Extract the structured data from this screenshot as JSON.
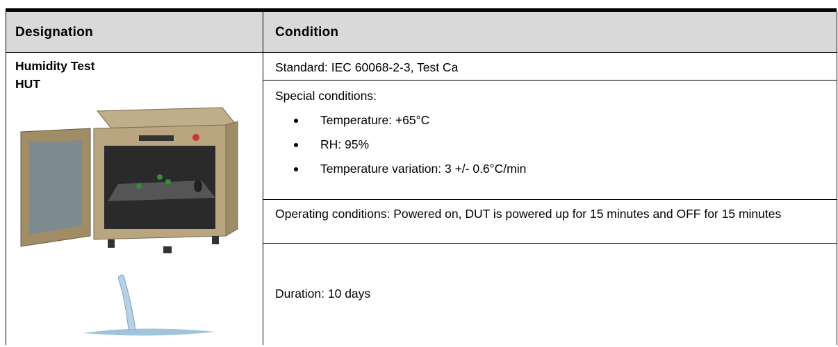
{
  "table": {
    "header": [
      "Designation",
      "Condition"
    ],
    "designation": [
      "Humidity Test",
      "HUT"
    ],
    "conditions": {
      "standard": "Standard: IEC 60068-2-3, Test Ca",
      "special_title": "Special conditions:",
      "special_items": [
        "Temperature: +65°C",
        "RH: 95%",
        "Temperature variation: 3 +/- 0.6°C/min"
      ],
      "operating": "Operating conditions: Powered on, DUT is powered up for 15 minutes and OFF for 15 minutes",
      "duration": "Duration: 10 days"
    }
  }
}
